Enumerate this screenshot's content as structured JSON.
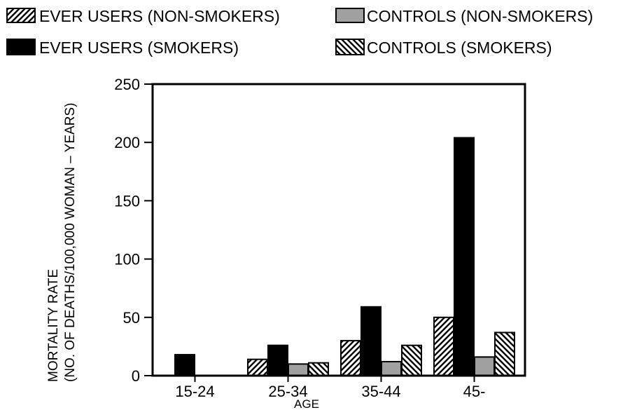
{
  "chart_data": {
    "type": "bar",
    "xlabel": "AGE",
    "ylabel_lines": [
      "MORTALITY RATE",
      "(NO. OF DEATHS/100,000 WOMAN – YEARS)"
    ],
    "ylim": [
      0,
      250
    ],
    "yticks": [
      0,
      50,
      100,
      150,
      200,
      250
    ],
    "categories": [
      "15-24",
      "25-34",
      "35-44",
      "45-"
    ],
    "legend_placement": "top",
    "grid": false,
    "series": [
      {
        "name": "EVER USERS (NON-SMOKERS)",
        "pattern": "hatch-right",
        "color": "#000000",
        "values": [
          null,
          14,
          30,
          50
        ]
      },
      {
        "name": "EVER USERS (SMOKERS)",
        "pattern": "solid",
        "color": "#000000",
        "values": [
          18,
          26,
          59,
          204
        ]
      },
      {
        "name": "CONTROLS (NON-SMOKERS)",
        "pattern": "solid",
        "color": "#a0a0a0",
        "values": [
          null,
          10,
          12,
          16
        ]
      },
      {
        "name": "CONTROLS (SMOKERS)",
        "pattern": "hatch-left",
        "color": "#000000",
        "values": [
          null,
          11,
          26,
          37
        ]
      }
    ]
  }
}
